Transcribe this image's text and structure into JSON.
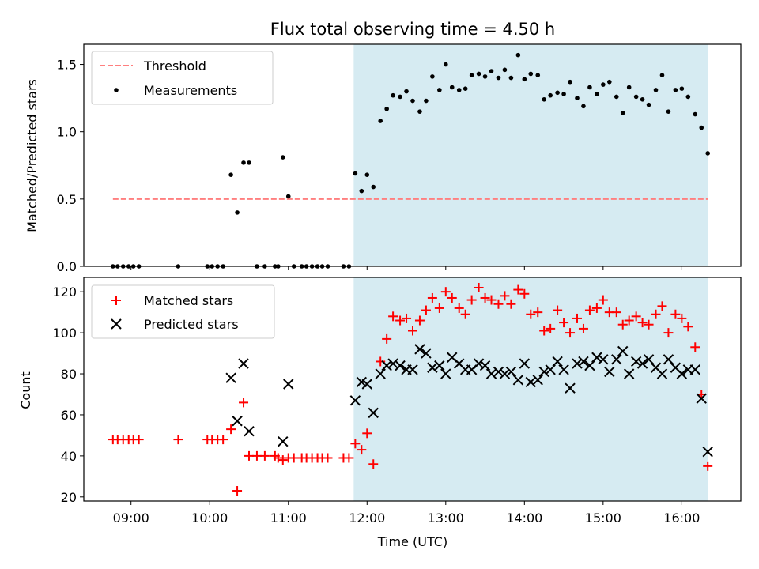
{
  "chart_data": [
    {
      "type": "scatter",
      "title": "Flux total observing time = 4.50 h",
      "xlabel": "",
      "ylabel": "Matched/Predicted stars",
      "xlim": [
        8.4,
        16.75
      ],
      "ylim": [
        0,
        1.65
      ],
      "y_ticks": [
        {
          "value": 0.0,
          "label": "0.0"
        },
        {
          "value": 0.5,
          "label": "0.5"
        },
        {
          "value": 1.0,
          "label": "1.0"
        },
        {
          "value": 1.5,
          "label": "1.5"
        }
      ],
      "shaded_region": {
        "x0": 11.83,
        "x1": 16.33,
        "color": "#add8e6"
      },
      "threshold": {
        "name": "Threshold",
        "y": 0.5,
        "x0": 8.77,
        "x1": 16.33,
        "color": "#ff7f7f",
        "style": "dashed"
      },
      "legend": {
        "placement": "top-left"
      },
      "series": [
        {
          "name": "Measurements",
          "marker": "dot",
          "color": "#000000",
          "points": [
            [
              8.77,
              0
            ],
            [
              8.83,
              0
            ],
            [
              8.9,
              0
            ],
            [
              8.97,
              0
            ],
            [
              9.03,
              0
            ],
            [
              9.1,
              0
            ],
            [
              9.6,
              0
            ],
            [
              9.97,
              0
            ],
            [
              10.03,
              0
            ],
            [
              10.1,
              0
            ],
            [
              10.17,
              0
            ],
            [
              10.27,
              0.68
            ],
            [
              10.35,
              0.4
            ],
            [
              10.43,
              0.77
            ],
            [
              10.5,
              0.77
            ],
            [
              10.6,
              0
            ],
            [
              10.7,
              0
            ],
            [
              10.83,
              0
            ],
            [
              10.87,
              0
            ],
            [
              10.93,
              0.81
            ],
            [
              11.0,
              0.52
            ],
            [
              11.07,
              0
            ],
            [
              11.17,
              0
            ],
            [
              11.23,
              0
            ],
            [
              11.3,
              0
            ],
            [
              11.37,
              0
            ],
            [
              11.43,
              0
            ],
            [
              11.5,
              0
            ],
            [
              11.7,
              0
            ],
            [
              11.77,
              0
            ],
            [
              11.85,
              0.69
            ],
            [
              11.93,
              0.56
            ],
            [
              12.0,
              0.68
            ],
            [
              12.08,
              0.59
            ],
            [
              12.17,
              1.08
            ],
            [
              12.25,
              1.17
            ],
            [
              12.33,
              1.27
            ],
            [
              12.42,
              1.26
            ],
            [
              12.5,
              1.3
            ],
            [
              12.58,
              1.23
            ],
            [
              12.67,
              1.15
            ],
            [
              12.75,
              1.23
            ],
            [
              12.83,
              1.41
            ],
            [
              12.92,
              1.31
            ],
            [
              13.0,
              1.5
            ],
            [
              13.08,
              1.33
            ],
            [
              13.17,
              1.31
            ],
            [
              13.25,
              1.32
            ],
            [
              13.33,
              1.42
            ],
            [
              13.42,
              1.43
            ],
            [
              13.5,
              1.41
            ],
            [
              13.58,
              1.45
            ],
            [
              13.67,
              1.4
            ],
            [
              13.75,
              1.46
            ],
            [
              13.83,
              1.4
            ],
            [
              13.92,
              1.57
            ],
            [
              14.0,
              1.39
            ],
            [
              14.08,
              1.43
            ],
            [
              14.17,
              1.42
            ],
            [
              14.25,
              1.24
            ],
            [
              14.33,
              1.27
            ],
            [
              14.42,
              1.29
            ],
            [
              14.5,
              1.28
            ],
            [
              14.58,
              1.37
            ],
            [
              14.67,
              1.25
            ],
            [
              14.75,
              1.19
            ],
            [
              14.83,
              1.33
            ],
            [
              14.92,
              1.28
            ],
            [
              15.0,
              1.35
            ],
            [
              15.08,
              1.37
            ],
            [
              15.17,
              1.26
            ],
            [
              15.25,
              1.14
            ],
            [
              15.33,
              1.33
            ],
            [
              15.42,
              1.26
            ],
            [
              15.5,
              1.24
            ],
            [
              15.58,
              1.2
            ],
            [
              15.67,
              1.31
            ],
            [
              15.75,
              1.42
            ],
            [
              15.83,
              1.15
            ],
            [
              15.92,
              1.31
            ],
            [
              16.0,
              1.32
            ],
            [
              16.08,
              1.26
            ],
            [
              16.17,
              1.13
            ],
            [
              16.25,
              1.03
            ],
            [
              16.33,
              0.84
            ]
          ]
        }
      ]
    },
    {
      "type": "scatter",
      "title": "",
      "xlabel": "Time (UTC)",
      "ylabel": "Count",
      "xlim": [
        8.4,
        16.75
      ],
      "ylim": [
        18,
        127
      ],
      "x_ticks": [
        {
          "value": 9,
          "label": "09:00"
        },
        {
          "value": 10,
          "label": "10:00"
        },
        {
          "value": 11,
          "label": "11:00"
        },
        {
          "value": 12,
          "label": "12:00"
        },
        {
          "value": 13,
          "label": "13:00"
        },
        {
          "value": 14,
          "label": "14:00"
        },
        {
          "value": 15,
          "label": "15:00"
        },
        {
          "value": 16,
          "label": "16:00"
        }
      ],
      "y_ticks": [
        {
          "value": 20,
          "label": "20"
        },
        {
          "value": 40,
          "label": "40"
        },
        {
          "value": 60,
          "label": "60"
        },
        {
          "value": 80,
          "label": "80"
        },
        {
          "value": 100,
          "label": "100"
        },
        {
          "value": 120,
          "label": "120"
        }
      ],
      "shaded_region": {
        "x0": 11.83,
        "x1": 16.33,
        "color": "#add8e6"
      },
      "legend": {
        "placement": "top-left"
      },
      "series": [
        {
          "name": "Matched stars",
          "marker": "plus",
          "color": "#ff0000",
          "points": [
            [
              8.77,
              48
            ],
            [
              8.83,
              48
            ],
            [
              8.9,
              48
            ],
            [
              8.97,
              48
            ],
            [
              9.03,
              48
            ],
            [
              9.1,
              48
            ],
            [
              9.6,
              48
            ],
            [
              9.97,
              48
            ],
            [
              10.03,
              48
            ],
            [
              10.1,
              48
            ],
            [
              10.17,
              48
            ],
            [
              10.27,
              53
            ],
            [
              10.35,
              23
            ],
            [
              10.43,
              66
            ],
            [
              10.5,
              40
            ],
            [
              10.6,
              40
            ],
            [
              10.7,
              40
            ],
            [
              10.83,
              40
            ],
            [
              10.87,
              39
            ],
            [
              10.93,
              38
            ],
            [
              11.0,
              39
            ],
            [
              11.07,
              39
            ],
            [
              11.17,
              39
            ],
            [
              11.23,
              39
            ],
            [
              11.3,
              39
            ],
            [
              11.37,
              39
            ],
            [
              11.43,
              39
            ],
            [
              11.5,
              39
            ],
            [
              11.7,
              39
            ],
            [
              11.77,
              39
            ],
            [
              11.85,
              46
            ],
            [
              11.93,
              43
            ],
            [
              12.0,
              51
            ],
            [
              12.08,
              36
            ],
            [
              12.17,
              86
            ],
            [
              12.25,
              97
            ],
            [
              12.33,
              108
            ],
            [
              12.42,
              106
            ],
            [
              12.5,
              107
            ],
            [
              12.58,
              101
            ],
            [
              12.67,
              106
            ],
            [
              12.75,
              111
            ],
            [
              12.83,
              117
            ],
            [
              12.92,
              112
            ],
            [
              13.0,
              120
            ],
            [
              13.08,
              117
            ],
            [
              13.17,
              112
            ],
            [
              13.25,
              109
            ],
            [
              13.33,
              116
            ],
            [
              13.42,
              122
            ],
            [
              13.5,
              117
            ],
            [
              13.58,
              116
            ],
            [
              13.67,
              114
            ],
            [
              13.75,
              118
            ],
            [
              13.83,
              114
            ],
            [
              13.92,
              121
            ],
            [
              14.0,
              119
            ],
            [
              14.08,
              109
            ],
            [
              14.17,
              110
            ],
            [
              14.25,
              101
            ],
            [
              14.33,
              102
            ],
            [
              14.42,
              111
            ],
            [
              14.5,
              105
            ],
            [
              14.58,
              100
            ],
            [
              14.67,
              107
            ],
            [
              14.75,
              102
            ],
            [
              14.83,
              111
            ],
            [
              14.92,
              112
            ],
            [
              15.0,
              116
            ],
            [
              15.08,
              110
            ],
            [
              15.17,
              110
            ],
            [
              15.25,
              104
            ],
            [
              15.33,
              106
            ],
            [
              15.42,
              108
            ],
            [
              15.5,
              105
            ],
            [
              15.58,
              104
            ],
            [
              15.67,
              109
            ],
            [
              15.75,
              113
            ],
            [
              15.83,
              100
            ],
            [
              15.92,
              109
            ],
            [
              16.0,
              107
            ],
            [
              16.08,
              103
            ],
            [
              16.17,
              93
            ],
            [
              16.25,
              70
            ],
            [
              16.33,
              35
            ]
          ]
        },
        {
          "name": "Predicted stars",
          "marker": "x",
          "color": "#000000",
          "points": [
            [
              10.27,
              78
            ],
            [
              10.35,
              57
            ],
            [
              10.43,
              85
            ],
            [
              10.5,
              52
            ],
            [
              10.93,
              47
            ],
            [
              11.0,
              75
            ],
            [
              11.85,
              67
            ],
            [
              11.93,
              76
            ],
            [
              12.0,
              75
            ],
            [
              12.08,
              61
            ],
            [
              12.17,
              80
            ],
            [
              12.25,
              84
            ],
            [
              12.33,
              85
            ],
            [
              12.42,
              84
            ],
            [
              12.5,
              82
            ],
            [
              12.58,
              82
            ],
            [
              12.67,
              92
            ],
            [
              12.75,
              90
            ],
            [
              12.83,
              83
            ],
            [
              12.92,
              84
            ],
            [
              13.0,
              80
            ],
            [
              13.08,
              88
            ],
            [
              13.17,
              85
            ],
            [
              13.25,
              82
            ],
            [
              13.33,
              82
            ],
            [
              13.42,
              85
            ],
            [
              13.5,
              84
            ],
            [
              13.58,
              80
            ],
            [
              13.67,
              81
            ],
            [
              13.75,
              80
            ],
            [
              13.83,
              81
            ],
            [
              13.92,
              77
            ],
            [
              14.0,
              85
            ],
            [
              14.08,
              76
            ],
            [
              14.17,
              77
            ],
            [
              14.25,
              81
            ],
            [
              14.33,
              82
            ],
            [
              14.42,
              86
            ],
            [
              14.5,
              82
            ],
            [
              14.58,
              73
            ],
            [
              14.67,
              85
            ],
            [
              14.75,
              86
            ],
            [
              14.83,
              84
            ],
            [
              14.92,
              88
            ],
            [
              15.0,
              87
            ],
            [
              15.08,
              81
            ],
            [
              15.17,
              87
            ],
            [
              15.25,
              91
            ],
            [
              15.33,
              80
            ],
            [
              15.42,
              86
            ],
            [
              15.5,
              85
            ],
            [
              15.58,
              87
            ],
            [
              15.67,
              83
            ],
            [
              15.75,
              80
            ],
            [
              15.83,
              87
            ],
            [
              15.92,
              83
            ],
            [
              16.0,
              80
            ],
            [
              16.08,
              82
            ],
            [
              16.17,
              82
            ],
            [
              16.25,
              68
            ],
            [
              16.33,
              42
            ]
          ]
        }
      ]
    }
  ]
}
